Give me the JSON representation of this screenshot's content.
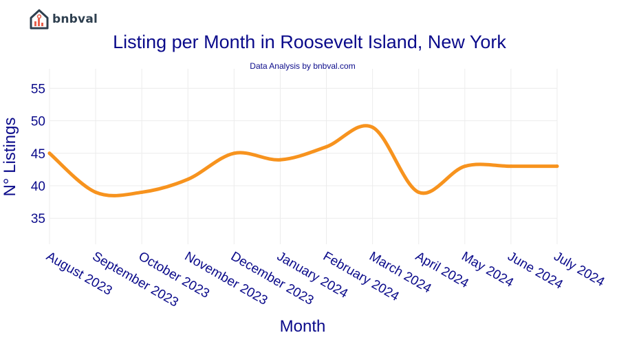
{
  "brand": {
    "name": "bnbval"
  },
  "chart_data": {
    "type": "line",
    "title": "Listing per Month in Roosevelt Island, New York",
    "subtitle": "Data Analysis by bnbval.com",
    "xlabel": "Month",
    "ylabel": "N° Listings",
    "categories": [
      "August 2023",
      "September 2023",
      "October 2023",
      "November 2023",
      "December 2023",
      "January 2024",
      "February 2024",
      "March 2024",
      "April 2024",
      "May 2024",
      "June 2024",
      "July 2024"
    ],
    "series": [
      {
        "values": [
          45,
          39,
          39,
          41,
          45,
          44,
          46,
          49,
          39,
          43,
          43,
          43
        ],
        "color": "#f7931e"
      }
    ],
    "yticks": [
      35,
      40,
      45,
      50,
      55
    ],
    "ylim": [
      31,
      58
    ],
    "grid": true,
    "legend": "none"
  }
}
